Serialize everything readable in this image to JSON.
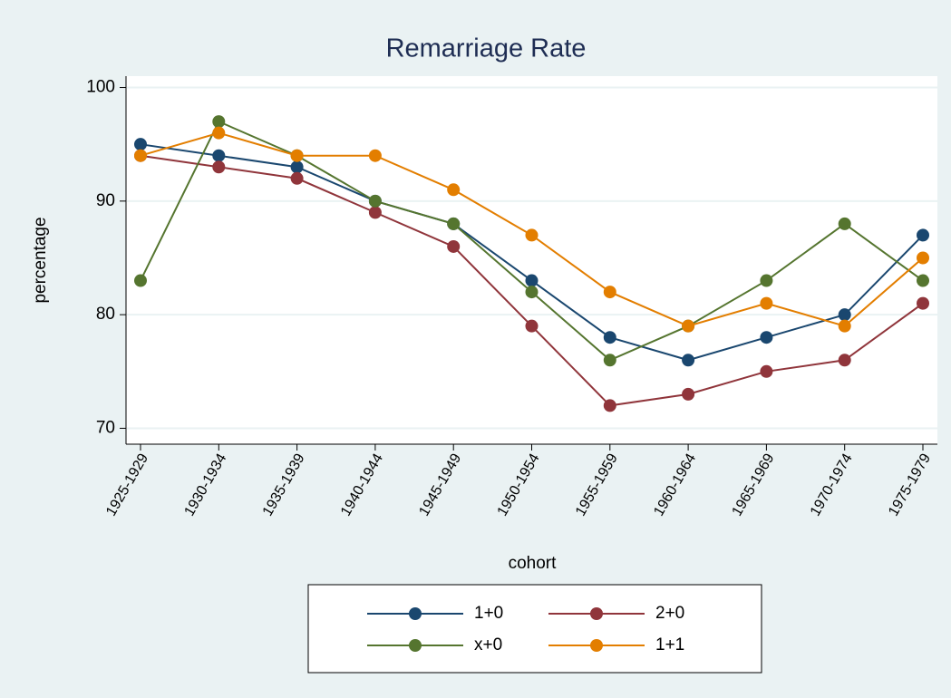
{
  "chart_data": {
    "type": "line",
    "title": "Remarriage Rate",
    "xlabel": "cohort",
    "ylabel": "percentage",
    "categories": [
      "1925-1929",
      "1930-1934",
      "1935-1939",
      "1940-1944",
      "1945-1949",
      "1950-1954",
      "1955-1959",
      "1960-1964",
      "1965-1969",
      "1970-1974",
      "1975-1979"
    ],
    "series": [
      {
        "name": "1+0",
        "color": "#1a476f",
        "values": [
          95,
          94,
          93,
          90,
          88,
          83,
          78,
          76,
          78,
          80,
          87
        ]
      },
      {
        "name": "2+0",
        "color": "#90353b",
        "values": [
          94,
          93,
          92,
          89,
          86,
          79,
          72,
          73,
          75,
          76,
          81
        ]
      },
      {
        "name": "x+0",
        "color": "#55752f",
        "values": [
          83,
          97,
          94,
          90,
          88,
          82,
          76,
          79,
          83,
          88,
          83
        ]
      },
      {
        "name": "1+1",
        "color": "#e37e00",
        "values": [
          94,
          96,
          94,
          94,
          91,
          87,
          82,
          79,
          81,
          79,
          85
        ]
      }
    ],
    "ylim": [
      68.6,
      101
    ],
    "yticks": [
      70,
      80,
      90,
      100
    ],
    "grid": true
  }
}
